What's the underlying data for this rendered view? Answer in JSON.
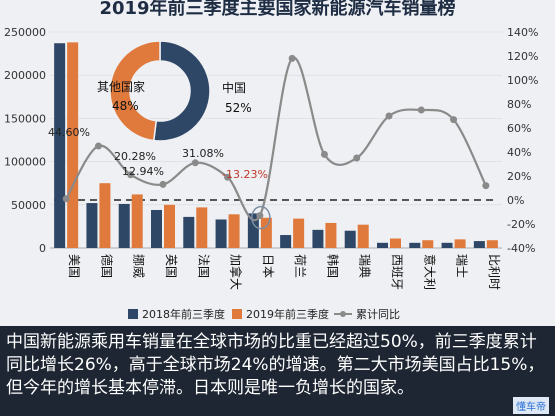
{
  "chart_data": {
    "type": "bar",
    "title": "2019年前三季度主要国家新能源汽车销量榜",
    "categories": [
      "美国",
      "德国",
      "挪威",
      "英国",
      "法国",
      "加拿大",
      "日本",
      "荷兰",
      "韩国",
      "瑞典",
      "西班牙",
      "意大利",
      "瑞士",
      "比利时"
    ],
    "series": [
      {
        "name": "2018年前三季度",
        "color": "#2e4766",
        "values": [
          237000,
          52000,
          51000,
          44000,
          36000,
          33000,
          40000,
          15000,
          21000,
          20000,
          6000,
          6000,
          6000,
          8000
        ]
      },
      {
        "name": "2019年前三季度",
        "color": "#e07a3c",
        "values": [
          238000,
          75000,
          62000,
          50000,
          47000,
          39000,
          35000,
          34000,
          29000,
          27000,
          11000,
          9000,
          10000,
          9000
        ]
      },
      {
        "name": "累计同比",
        "type": "line",
        "axis": "right",
        "color": "#8a8a8a",
        "values": [
          1,
          45,
          21,
          13,
          31,
          19,
          -13,
          118,
          38,
          35,
          70,
          75,
          67,
          12
        ]
      }
    ],
    "annotations": [
      "44.60%",
      "20.28%",
      "12.94%",
      "31.08%",
      "-13.23%"
    ],
    "ylim_left": [
      0,
      250000
    ],
    "yticks_left": [
      "0",
      "50000",
      "100000",
      "150000",
      "200000",
      "250000"
    ],
    "ylim_right": [
      -40,
      140
    ],
    "yticks_right": [
      "-40%",
      "-20%",
      "0%",
      "20%",
      "40%",
      "60%",
      "80%",
      "100%",
      "120%",
      "140%"
    ],
    "reference_line": 0,
    "legend_position": "bottom",
    "inset_pie": {
      "slices": [
        {
          "label": "中国",
          "pct": "52%",
          "value": 52,
          "color": "#2e4766"
        },
        {
          "label": "其他国家",
          "pct": "48%",
          "value": 48,
          "color": "#e07a3c"
        }
      ]
    }
  },
  "caption": "中国新能源乘用车销量在全球市场的比重已经超过50%，前三季度累计同比增长26%，高于全球市场24%的增速。第二大市场美国占比15%，但今年的增长基本停滞。日本则是唯一负增长的国家。",
  "watermark": "懂车帝"
}
